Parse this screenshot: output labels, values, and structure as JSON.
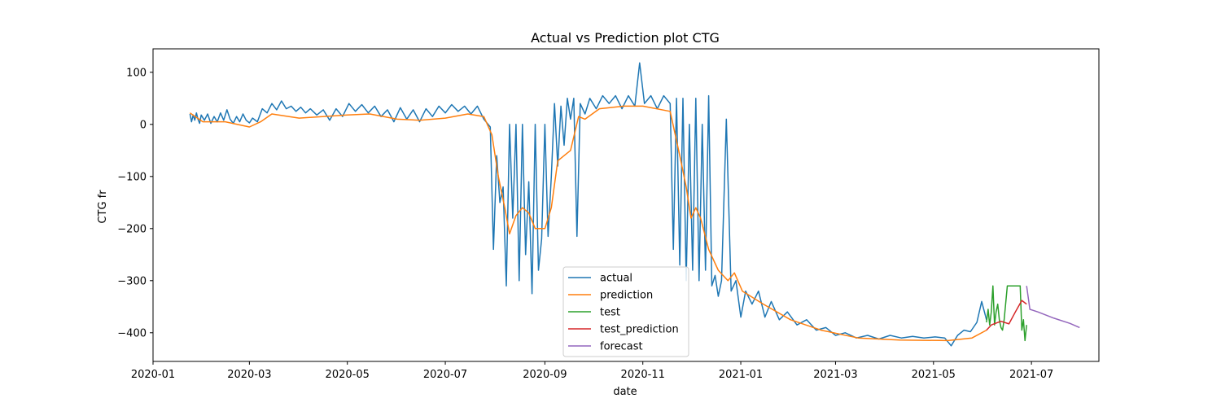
{
  "chart_data": {
    "type": "line",
    "title": "Actual vs Prediction plot CTG",
    "xlabel": "date",
    "ylabel": "CTG fr",
    "xlim": [
      "2020-01-01",
      "2021-08-12"
    ],
    "ylim": [
      -455,
      145
    ],
    "x_ticks": [
      "2020-01",
      "2020-03",
      "2020-05",
      "2020-07",
      "2020-09",
      "2020-11",
      "2021-01",
      "2021-03",
      "2021-05",
      "2021-07"
    ],
    "y_ticks": [
      100,
      0,
      -100,
      -200,
      -300,
      -400
    ],
    "legend_position": "lower center",
    "grid": false,
    "series": [
      {
        "name": "actual",
        "color": "#1f77b4",
        "points": [
          [
            "2020-01-24",
            20
          ],
          [
            "2020-01-25",
            5
          ],
          [
            "2020-01-26",
            18
          ],
          [
            "2020-01-27",
            8
          ],
          [
            "2020-01-28",
            22
          ],
          [
            "2020-01-29",
            10
          ],
          [
            "2020-01-30",
            2
          ],
          [
            "2020-01-31",
            18
          ],
          [
            "2020-02-02",
            8
          ],
          [
            "2020-02-04",
            20
          ],
          [
            "2020-02-06",
            2
          ],
          [
            "2020-02-08",
            15
          ],
          [
            "2020-02-10",
            5
          ],
          [
            "2020-02-12",
            22
          ],
          [
            "2020-02-14",
            8
          ],
          [
            "2020-02-16",
            28
          ],
          [
            "2020-02-18",
            10
          ],
          [
            "2020-02-20",
            2
          ],
          [
            "2020-02-22",
            15
          ],
          [
            "2020-02-24",
            5
          ],
          [
            "2020-02-26",
            20
          ],
          [
            "2020-02-28",
            8
          ],
          [
            "2020-03-01",
            3
          ],
          [
            "2020-03-03",
            12
          ],
          [
            "2020-03-06",
            5
          ],
          [
            "2020-03-09",
            30
          ],
          [
            "2020-03-12",
            22
          ],
          [
            "2020-03-15",
            40
          ],
          [
            "2020-03-18",
            28
          ],
          [
            "2020-03-21",
            45
          ],
          [
            "2020-03-24",
            30
          ],
          [
            "2020-03-27",
            35
          ],
          [
            "2020-03-30",
            25
          ],
          [
            "2020-04-02",
            33
          ],
          [
            "2020-04-05",
            22
          ],
          [
            "2020-04-08",
            30
          ],
          [
            "2020-04-12",
            18
          ],
          [
            "2020-04-16",
            28
          ],
          [
            "2020-04-20",
            8
          ],
          [
            "2020-04-24",
            30
          ],
          [
            "2020-04-28",
            15
          ],
          [
            "2020-05-02",
            40
          ],
          [
            "2020-05-06",
            25
          ],
          [
            "2020-05-10",
            38
          ],
          [
            "2020-05-14",
            22
          ],
          [
            "2020-05-18",
            35
          ],
          [
            "2020-05-22",
            15
          ],
          [
            "2020-05-26",
            28
          ],
          [
            "2020-05-30",
            5
          ],
          [
            "2020-06-03",
            32
          ],
          [
            "2020-06-07",
            10
          ],
          [
            "2020-06-11",
            28
          ],
          [
            "2020-06-15",
            5
          ],
          [
            "2020-06-19",
            30
          ],
          [
            "2020-06-23",
            15
          ],
          [
            "2020-06-27",
            35
          ],
          [
            "2020-07-01",
            22
          ],
          [
            "2020-07-05",
            38
          ],
          [
            "2020-07-09",
            25
          ],
          [
            "2020-07-13",
            35
          ],
          [
            "2020-07-17",
            20
          ],
          [
            "2020-07-21",
            35
          ],
          [
            "2020-07-25",
            10
          ],
          [
            "2020-07-29",
            -5
          ],
          [
            "2020-07-31",
            -240
          ],
          [
            "2020-08-02",
            -60
          ],
          [
            "2020-08-04",
            -150
          ],
          [
            "2020-08-06",
            -120
          ],
          [
            "2020-08-08",
            -310
          ],
          [
            "2020-08-10",
            0
          ],
          [
            "2020-08-12",
            -180
          ],
          [
            "2020-08-14",
            0
          ],
          [
            "2020-08-16",
            -300
          ],
          [
            "2020-08-18",
            0
          ],
          [
            "2020-08-20",
            -250
          ],
          [
            "2020-08-22",
            -110
          ],
          [
            "2020-08-24",
            -325
          ],
          [
            "2020-08-26",
            0
          ],
          [
            "2020-08-28",
            -280
          ],
          [
            "2020-08-30",
            -220
          ],
          [
            "2020-09-01",
            0
          ],
          [
            "2020-09-03",
            -215
          ],
          [
            "2020-09-05",
            -100
          ],
          [
            "2020-09-07",
            40
          ],
          [
            "2020-09-09",
            -80
          ],
          [
            "2020-09-11",
            35
          ],
          [
            "2020-09-13",
            -40
          ],
          [
            "2020-09-15",
            50
          ],
          [
            "2020-09-17",
            10
          ],
          [
            "2020-09-19",
            50
          ],
          [
            "2020-09-21",
            -215
          ],
          [
            "2020-09-23",
            40
          ],
          [
            "2020-09-26",
            20
          ],
          [
            "2020-09-29",
            50
          ],
          [
            "2020-10-03",
            30
          ],
          [
            "2020-10-07",
            55
          ],
          [
            "2020-10-11",
            40
          ],
          [
            "2020-10-15",
            55
          ],
          [
            "2020-10-19",
            30
          ],
          [
            "2020-10-23",
            55
          ],
          [
            "2020-10-27",
            35
          ],
          [
            "2020-10-30",
            118
          ],
          [
            "2020-11-02",
            40
          ],
          [
            "2020-11-06",
            55
          ],
          [
            "2020-11-10",
            30
          ],
          [
            "2020-11-14",
            55
          ],
          [
            "2020-11-18",
            40
          ],
          [
            "2020-11-20",
            -240
          ],
          [
            "2020-11-22",
            50
          ],
          [
            "2020-11-24",
            -270
          ],
          [
            "2020-11-26",
            50
          ],
          [
            "2020-11-28",
            -300
          ],
          [
            "2020-11-30",
            0
          ],
          [
            "2020-12-02",
            -280
          ],
          [
            "2020-12-04",
            50
          ],
          [
            "2020-12-06",
            -300
          ],
          [
            "2020-12-08",
            0
          ],
          [
            "2020-12-10",
            -280
          ],
          [
            "2020-12-12",
            55
          ],
          [
            "2020-12-14",
            -310
          ],
          [
            "2020-12-16",
            -290
          ],
          [
            "2020-12-18",
            -330
          ],
          [
            "2020-12-20",
            -300
          ],
          [
            "2020-12-23",
            10
          ],
          [
            "2020-12-26",
            -320
          ],
          [
            "2020-12-29",
            -300
          ],
          [
            "2021-01-01",
            -370
          ],
          [
            "2021-01-04",
            -320
          ],
          [
            "2021-01-08",
            -345
          ],
          [
            "2021-01-12",
            -320
          ],
          [
            "2021-01-16",
            -370
          ],
          [
            "2021-01-20",
            -340
          ],
          [
            "2021-01-25",
            -375
          ],
          [
            "2021-01-30",
            -360
          ],
          [
            "2021-02-05",
            -385
          ],
          [
            "2021-02-11",
            -375
          ],
          [
            "2021-02-17",
            -395
          ],
          [
            "2021-02-23",
            -390
          ],
          [
            "2021-03-01",
            -405
          ],
          [
            "2021-03-07",
            -400
          ],
          [
            "2021-03-14",
            -410
          ],
          [
            "2021-03-21",
            -405
          ],
          [
            "2021-03-28",
            -412
          ],
          [
            "2021-04-04",
            -405
          ],
          [
            "2021-04-11",
            -410
          ],
          [
            "2021-04-18",
            -407
          ],
          [
            "2021-04-25",
            -410
          ],
          [
            "2021-05-02",
            -408
          ],
          [
            "2021-05-08",
            -410
          ],
          [
            "2021-05-12",
            -425
          ],
          [
            "2021-05-16",
            -405
          ],
          [
            "2021-05-20",
            -395
          ],
          [
            "2021-05-24",
            -398
          ],
          [
            "2021-05-28",
            -380
          ],
          [
            "2021-05-31",
            -340
          ],
          [
            "2021-06-03",
            -375
          ]
        ]
      },
      {
        "name": "prediction",
        "color": "#ff7f0e",
        "points": [
          [
            "2020-01-24",
            22
          ],
          [
            "2020-02-01",
            5
          ],
          [
            "2020-02-15",
            5
          ],
          [
            "2020-03-01",
            -5
          ],
          [
            "2020-03-08",
            5
          ],
          [
            "2020-03-15",
            20
          ],
          [
            "2020-04-01",
            12
          ],
          [
            "2020-05-01",
            18
          ],
          [
            "2020-05-15",
            20
          ],
          [
            "2020-06-01",
            10
          ],
          [
            "2020-06-15",
            8
          ],
          [
            "2020-07-01",
            12
          ],
          [
            "2020-07-15",
            20
          ],
          [
            "2020-07-25",
            15
          ],
          [
            "2020-07-30",
            -20
          ],
          [
            "2020-08-03",
            -100
          ],
          [
            "2020-08-07",
            -160
          ],
          [
            "2020-08-10",
            -210
          ],
          [
            "2020-08-14",
            -175
          ],
          [
            "2020-08-18",
            -160
          ],
          [
            "2020-08-22",
            -170
          ],
          [
            "2020-08-26",
            -200
          ],
          [
            "2020-09-01",
            -200
          ],
          [
            "2020-09-05",
            -160
          ],
          [
            "2020-09-09",
            -70
          ],
          [
            "2020-09-13",
            -60
          ],
          [
            "2020-09-17",
            -50
          ],
          [
            "2020-09-22",
            15
          ],
          [
            "2020-09-26",
            10
          ],
          [
            "2020-10-05",
            30
          ],
          [
            "2020-10-20",
            35
          ],
          [
            "2020-11-01",
            35
          ],
          [
            "2020-11-18",
            25
          ],
          [
            "2020-11-24",
            -60
          ],
          [
            "2020-11-28",
            -120
          ],
          [
            "2020-12-01",
            -180
          ],
          [
            "2020-12-04",
            -160
          ],
          [
            "2020-12-07",
            -180
          ],
          [
            "2020-12-12",
            -240
          ],
          [
            "2020-12-18",
            -280
          ],
          [
            "2020-12-24",
            -300
          ],
          [
            "2020-12-28",
            -285
          ],
          [
            "2021-01-02",
            -320
          ],
          [
            "2021-01-15",
            -345
          ],
          [
            "2021-02-01",
            -375
          ],
          [
            "2021-02-20",
            -395
          ],
          [
            "2021-03-15",
            -410
          ],
          [
            "2021-04-10",
            -414
          ],
          [
            "2021-05-10",
            -415
          ],
          [
            "2021-05-25",
            -410
          ],
          [
            "2021-06-03",
            -395
          ]
        ]
      },
      {
        "name": "test",
        "color": "#2ca02c",
        "points": [
          [
            "2021-06-03",
            -380
          ],
          [
            "2021-06-04",
            -355
          ],
          [
            "2021-06-05",
            -385
          ],
          [
            "2021-06-06",
            -360
          ],
          [
            "2021-06-07",
            -310
          ],
          [
            "2021-06-08",
            -385
          ],
          [
            "2021-06-09",
            -360
          ],
          [
            "2021-06-10",
            -345
          ],
          [
            "2021-06-11",
            -375
          ],
          [
            "2021-06-12",
            -390
          ],
          [
            "2021-06-13",
            -395
          ],
          [
            "2021-06-14",
            -375
          ],
          [
            "2021-06-16",
            -310
          ],
          [
            "2021-06-18",
            -310
          ],
          [
            "2021-06-20",
            -310
          ],
          [
            "2021-06-22",
            -310
          ],
          [
            "2021-06-24",
            -310
          ],
          [
            "2021-06-25",
            -395
          ],
          [
            "2021-06-26",
            -375
          ],
          [
            "2021-06-27",
            -415
          ],
          [
            "2021-06-28",
            -385
          ]
        ]
      },
      {
        "name": "test_prediction",
        "color": "#d62728",
        "points": [
          [
            "2021-06-03",
            -395
          ],
          [
            "2021-06-06",
            -385
          ],
          [
            "2021-06-12",
            -378
          ],
          [
            "2021-06-17",
            -383
          ],
          [
            "2021-06-21",
            -360
          ],
          [
            "2021-06-25",
            -338
          ],
          [
            "2021-06-28",
            -345
          ]
        ]
      },
      {
        "name": "forecast",
        "color": "#9467bd",
        "points": [
          [
            "2021-06-28",
            -310
          ],
          [
            "2021-06-30",
            -355
          ],
          [
            "2021-07-05",
            -360
          ],
          [
            "2021-07-15",
            -372
          ],
          [
            "2021-07-25",
            -382
          ],
          [
            "2021-07-31",
            -390
          ]
        ]
      }
    ]
  }
}
